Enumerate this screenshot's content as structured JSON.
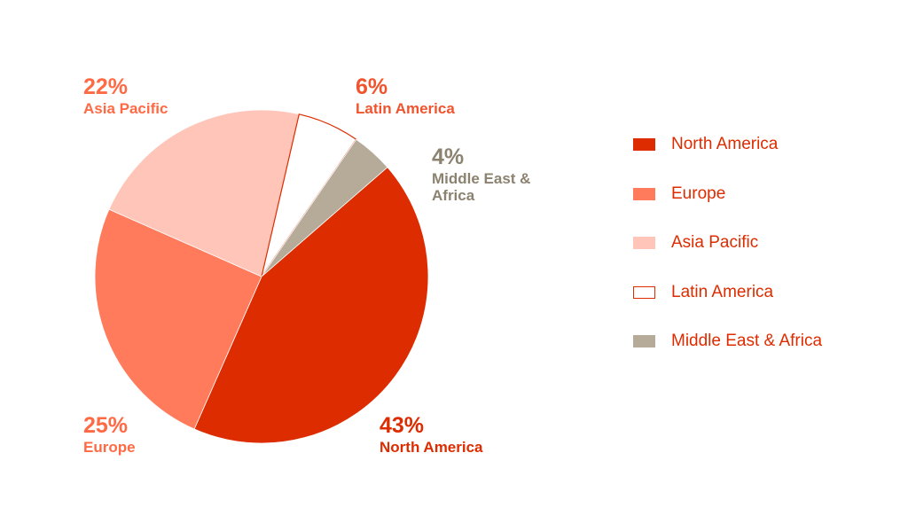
{
  "chart_data": {
    "type": "pie",
    "categories": [
      "North America",
      "Europe",
      "Asia Pacific",
      "Latin America",
      "Middle East & Africa"
    ],
    "values": [
      43,
      25,
      22,
      6,
      4
    ],
    "value_labels": [
      "43%",
      "25%",
      "22%",
      "6%",
      "4%"
    ],
    "colors": [
      "#dd2c00",
      "#ff7b5c",
      "#ffc5b8",
      "#ffffff",
      "#b5ab98"
    ],
    "legend": "right"
  }
}
